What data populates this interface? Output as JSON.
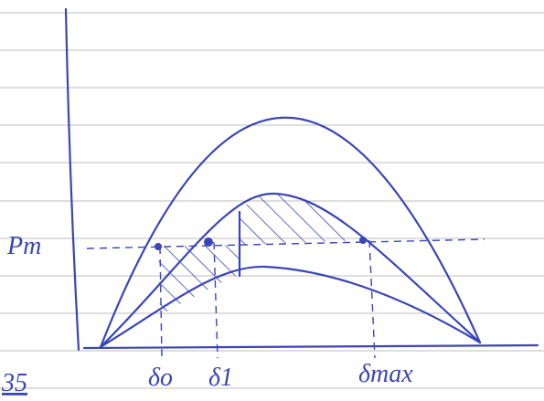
{
  "page_number": "35",
  "labels": {
    "power": "Pm",
    "delta_0": "δo",
    "delta_1": "δ1",
    "delta_max": "δmax"
  }
}
